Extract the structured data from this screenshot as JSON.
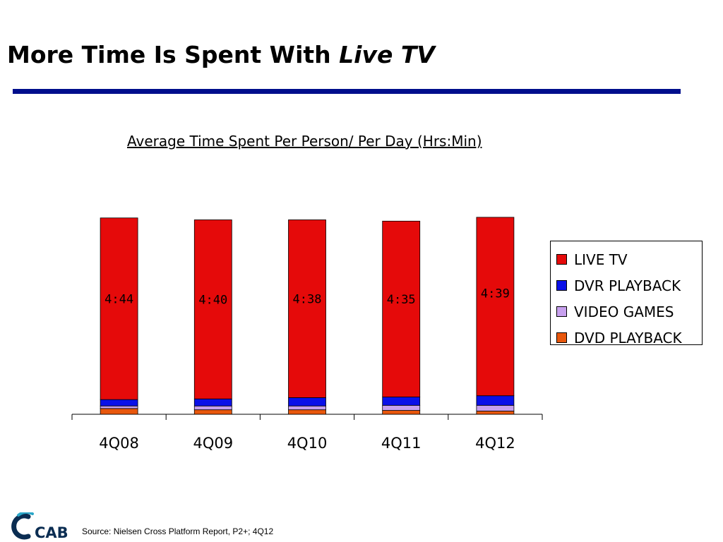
{
  "slide": {
    "title_prefix": "More Time Is Spent With ",
    "title_emphasis": "Live TV",
    "source": "Source: Nielsen Cross Platform Report, P2+; 4Q12",
    "logo_text": "CAB"
  },
  "colors": {
    "title_rule": "#000e8c"
  },
  "chart_data": {
    "type": "bar",
    "stacked": true,
    "title": "Average Time Spent Per Person/ Per Day (Hrs:Min)",
    "xlabel": "",
    "ylabel": "",
    "categories": [
      "4Q08",
      "4Q09",
      "4Q10",
      "4Q11",
      "4Q12"
    ],
    "series": [
      {
        "name": "DVD PLAYBACK",
        "color": "#e8570c",
        "values": [
          9,
          7,
          7,
          6,
          5
        ]
      },
      {
        "name": "VIDEO GAMES",
        "color": "#c7a0ee",
        "values": [
          4,
          6,
          6,
          8,
          9
        ]
      },
      {
        "name": "DVR PLAYBACK",
        "color": "#0a10e8",
        "values": [
          10,
          11,
          13,
          13,
          15
        ]
      },
      {
        "name": "LIVE TV",
        "color": "#e50a0a",
        "values": [
          284,
          280,
          278,
          275,
          279
        ]
      }
    ],
    "data_labels": [
      "4:44",
      "4:40",
      "4:38",
      "4:35",
      "4:39"
    ],
    "ylim": [
      0,
      320
    ],
    "grid": false,
    "legend_position": "right"
  }
}
